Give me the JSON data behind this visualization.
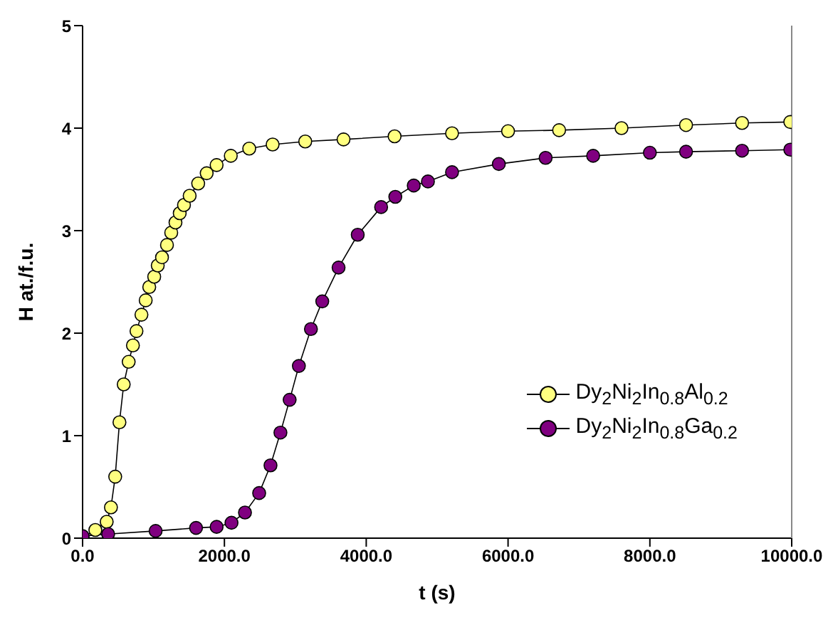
{
  "chart_data": {
    "type": "line",
    "xlabel": "t (s)",
    "ylabel": "H at./f.u.",
    "xlim": [
      0,
      10000
    ],
    "xticks": [
      {
        "value": 0,
        "label": "0.0"
      },
      {
        "value": 2000,
        "label": "2000.0"
      },
      {
        "value": 4000,
        "label": "4000.0"
      },
      {
        "value": 6000,
        "label": "6000.0"
      },
      {
        "value": 8000,
        "label": "8000.0"
      },
      {
        "value": 10000,
        "label": "10000.0"
      }
    ],
    "ylim": [
      0,
      5
    ],
    "yticks": [
      0,
      1,
      2,
      3,
      4,
      5
    ],
    "grid": false,
    "legend": "right",
    "marker": "circle",
    "line_style": "solid",
    "series": [
      {
        "name": "Dy$_{2}$Ni$_{2}$In$_{0.8}$Al$_{0.2}$",
        "color": "#ffff80",
        "x": [
          0,
          180,
          340,
          400,
          460,
          520,
          580,
          650,
          710,
          760,
          830,
          890,
          940,
          1010,
          1060,
          1120,
          1190,
          1250,
          1310,
          1370,
          1430,
          1510,
          1630,
          1750,
          1890,
          2090,
          2350,
          2680,
          3140,
          3680,
          4400,
          5210,
          6000,
          6720,
          7600,
          8510,
          9300,
          9980
        ],
        "values": [
          0,
          0.08,
          0.16,
          0.3,
          0.6,
          1.13,
          1.5,
          1.72,
          1.88,
          2.02,
          2.18,
          2.32,
          2.45,
          2.55,
          2.66,
          2.74,
          2.86,
          2.98,
          3.08,
          3.17,
          3.25,
          3.34,
          3.46,
          3.56,
          3.64,
          3.73,
          3.8,
          3.84,
          3.87,
          3.89,
          3.92,
          3.95,
          3.97,
          3.98,
          4.0,
          4.03,
          4.05,
          4.06
        ]
      },
      {
        "name": "Dy$_{2}$Ni$_{2}$In$_{0.8}$Ga$_{0.2}$",
        "color": "#800080",
        "x": [
          0,
          360,
          1030,
          1600,
          1890,
          2100,
          2290,
          2490,
          2650,
          2790,
          2920,
          3050,
          3220,
          3380,
          3610,
          3880,
          4210,
          4410,
          4670,
          4870,
          5210,
          5870,
          6530,
          7200,
          8000,
          8510,
          9300,
          9980
        ],
        "values": [
          0.02,
          0.04,
          0.07,
          0.1,
          0.11,
          0.15,
          0.25,
          0.44,
          0.71,
          1.03,
          1.35,
          1.68,
          2.04,
          2.31,
          2.64,
          2.96,
          3.23,
          3.33,
          3.44,
          3.48,
          3.57,
          3.65,
          3.71,
          3.73,
          3.76,
          3.77,
          3.78,
          3.79
        ]
      }
    ]
  }
}
